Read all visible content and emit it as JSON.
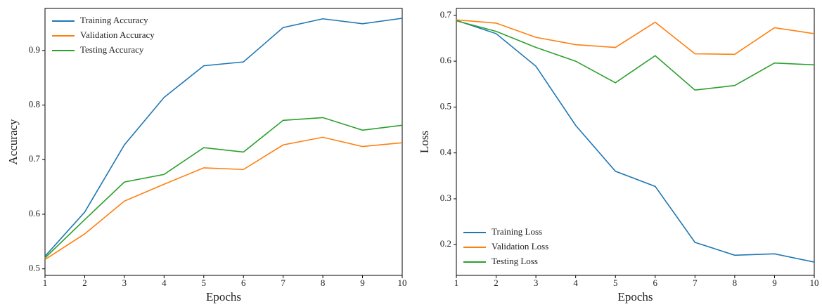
{
  "chart_data": [
    {
      "type": "line",
      "xlabel": "Epochs",
      "ylabel": "Accuracy",
      "x": [
        1,
        2,
        3,
        4,
        5,
        6,
        7,
        8,
        9,
        10
      ],
      "xlim": [
        1,
        10
      ],
      "xticks": [
        1,
        2,
        3,
        4,
        5,
        6,
        7,
        8,
        9,
        10
      ],
      "ylim": [
        0.488,
        0.977
      ],
      "yticks": [
        0.5,
        0.6,
        0.7,
        0.8,
        0.9
      ],
      "legend": "upper-left",
      "series": [
        {
          "name": "Training Accuracy",
          "color": "#1f77b4",
          "values": [
            0.523,
            0.604,
            0.727,
            0.814,
            0.872,
            0.879,
            0.942,
            0.958,
            0.949,
            0.959
          ]
        },
        {
          "name": "Validation Accuracy",
          "color": "#ff7f0e",
          "values": [
            0.517,
            0.564,
            0.624,
            0.655,
            0.685,
            0.682,
            0.727,
            0.741,
            0.724,
            0.731
          ]
        },
        {
          "name": "Testing Accuracy",
          "color": "#2ca02c",
          "values": [
            0.52,
            0.59,
            0.659,
            0.673,
            0.722,
            0.714,
            0.772,
            0.777,
            0.754,
            0.763
          ]
        }
      ]
    },
    {
      "type": "line",
      "xlabel": "Epochs",
      "ylabel": "Loss",
      "x": [
        1,
        2,
        3,
        4,
        5,
        6,
        7,
        8,
        9,
        10
      ],
      "xlim": [
        1,
        10
      ],
      "xticks": [
        1,
        2,
        3,
        4,
        5,
        6,
        7,
        8,
        9,
        10
      ],
      "ylim": [
        0.133,
        0.715
      ],
      "yticks": [
        0.2,
        0.3,
        0.4,
        0.5,
        0.6,
        0.7
      ],
      "legend": "lower-left",
      "series": [
        {
          "name": "Training Loss",
          "color": "#1f77b4",
          "values": [
            0.689,
            0.66,
            0.589,
            0.46,
            0.36,
            0.327,
            0.205,
            0.177,
            0.18,
            0.162
          ]
        },
        {
          "name": "Validation Loss",
          "color": "#ff7f0e",
          "values": [
            0.69,
            0.683,
            0.652,
            0.636,
            0.63,
            0.685,
            0.616,
            0.615,
            0.673,
            0.66
          ]
        },
        {
          "name": "Testing Loss",
          "color": "#2ca02c",
          "values": [
            0.688,
            0.665,
            0.63,
            0.6,
            0.553,
            0.612,
            0.537,
            0.547,
            0.596,
            0.592
          ]
        }
      ]
    }
  ]
}
